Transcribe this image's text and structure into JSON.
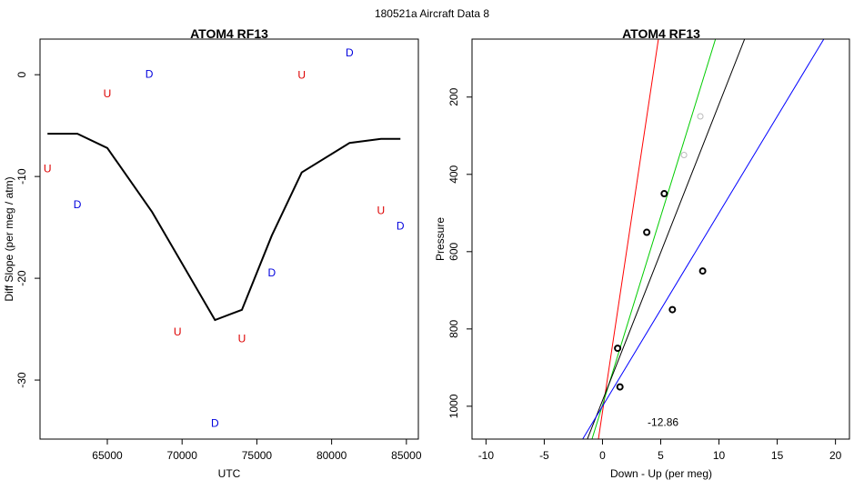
{
  "figure": {
    "suptitle": "180521a   Aircraft Data 8"
  },
  "chart_data": [
    {
      "type": "line",
      "title": "ATOM4 RF13",
      "xlabel": "UTC",
      "ylabel": "Diff Slope (per meg / atm)",
      "xlim": [
        60500,
        85800
      ],
      "ylim": [
        -35.8,
        3.5
      ],
      "xticks": [
        65000,
        70000,
        75000,
        80000,
        85000
      ],
      "xtick_labels": [
        "65000",
        "70000",
        "75000",
        "80000",
        "85000"
      ],
      "yticks": [
        0,
        -10,
        -20,
        -30
      ],
      "ytick_labels": [
        "0",
        "-10",
        "-20",
        "-30"
      ],
      "grid": false,
      "series": [
        {
          "x": [
            61000,
            63000,
            65000,
            68000,
            72200,
            74000,
            76000,
            78000,
            81200,
            83300,
            84600
          ],
          "y": [
            -5.8,
            -5.8,
            -7.2,
            -13.5,
            -24.1,
            -23.1,
            -15.8,
            -9.6,
            -6.7,
            -6.3,
            -6.3
          ],
          "color": "#000000"
        }
      ],
      "markers": [
        {
          "text": "U",
          "x": 61000,
          "y": -9.2,
          "color": "#dd0000"
        },
        {
          "text": "D",
          "x": 63000,
          "y": -12.7,
          "color": "#0000dd"
        },
        {
          "text": "U",
          "x": 65000,
          "y": -1.8,
          "color": "#dd0000"
        },
        {
          "text": "D",
          "x": 67800,
          "y": 0.1,
          "color": "#0000dd"
        },
        {
          "text": "U",
          "x": 69700,
          "y": -25.2,
          "color": "#dd0000"
        },
        {
          "text": "D",
          "x": 72200,
          "y": -34.2,
          "color": "#0000dd"
        },
        {
          "text": "U",
          "x": 74000,
          "y": -25.9,
          "color": "#dd0000"
        },
        {
          "text": "D",
          "x": 76000,
          "y": -19.4,
          "color": "#0000dd"
        },
        {
          "text": "U",
          "x": 78000,
          "y": 0.0,
          "color": "#dd0000"
        },
        {
          "text": "D",
          "x": 81200,
          "y": 2.2,
          "color": "#0000dd"
        },
        {
          "text": "U",
          "x": 83300,
          "y": -13.3,
          "color": "#dd0000"
        },
        {
          "text": "D",
          "x": 84600,
          "y": -14.8,
          "color": "#0000dd"
        }
      ]
    },
    {
      "type": "scatter",
      "title": "ATOM4 RF13",
      "xlabel": "Down - Up (per meg)",
      "ylabel": "Pressure",
      "xlim": [
        -11.2,
        21.2
      ],
      "ylim": [
        1085,
        50
      ],
      "xticks": [
        -10,
        -5,
        0,
        5,
        10,
        15,
        20
      ],
      "xtick_labels": [
        "-10",
        "-5",
        "0",
        "5",
        "10",
        "15",
        "20"
      ],
      "yticks": [
        200,
        400,
        600,
        800,
        1000
      ],
      "ytick_labels": [
        "200",
        "400",
        "600",
        "800",
        "1000"
      ],
      "grid": false,
      "points": [
        {
          "x": 5.3,
          "y": 450,
          "style": "bold"
        },
        {
          "x": 3.8,
          "y": 550,
          "style": "bold"
        },
        {
          "x": 8.6,
          "y": 650,
          "style": "bold"
        },
        {
          "x": 6.0,
          "y": 750,
          "style": "bold"
        },
        {
          "x": 1.3,
          "y": 850,
          "style": "bold"
        },
        {
          "x": 1.5,
          "y": 950,
          "style": "bold"
        },
        {
          "x": 8.4,
          "y": 250,
          "style": "faint"
        },
        {
          "x": 7.0,
          "y": 350,
          "style": "faint"
        }
      ],
      "lines": [
        {
          "color": "#ff0000",
          "x": [
            -0.35,
            4.8
          ],
          "y": [
            1085,
            50
          ]
        },
        {
          "color": "#00cc00",
          "x": [
            -0.9,
            9.7
          ],
          "y": [
            1085,
            50
          ]
        },
        {
          "color": "#000000",
          "x": [
            -1.3,
            12.2
          ],
          "y": [
            1085,
            50
          ]
        },
        {
          "color": "#0000ff",
          "x": [
            -1.7,
            19.0
          ],
          "y": [
            1085,
            50
          ]
        }
      ],
      "annotation": {
        "text": "-12.86",
        "x": 5.2,
        "y": 1040
      }
    }
  ]
}
